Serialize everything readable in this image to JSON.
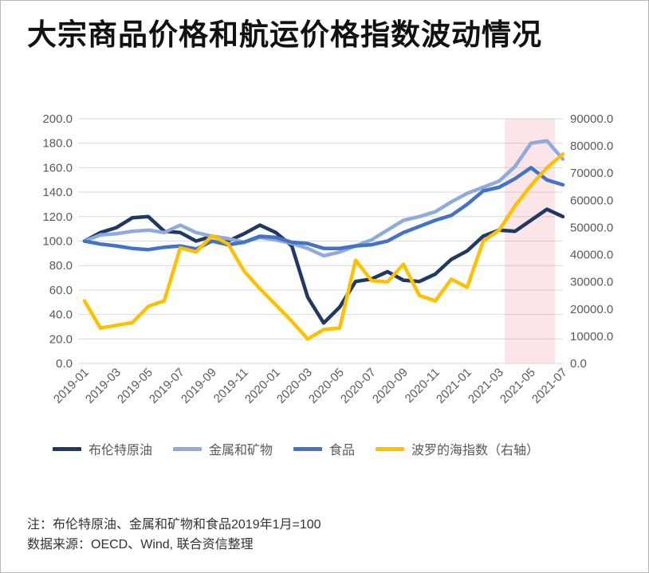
{
  "title": "大宗商品价格和航运价格指数波动情况",
  "notes": {
    "line1": "注：布伦特原油、金属和矿物和食品2019年1月=100",
    "line2": "数据来源：OECD、Wind, 联合资信整理"
  },
  "colors": {
    "gridline": "#D9D9D9",
    "axis_text": "#595959",
    "highlight_band": "#E8707C",
    "highlight_band_opacity": 0.18
  },
  "chart_data": {
    "type": "line",
    "title": "大宗商品价格和航运价格指数波动情况",
    "x": [
      "2019-01",
      "2019-02",
      "2019-03",
      "2019-04",
      "2019-05",
      "2019-06",
      "2019-07",
      "2019-08",
      "2019-09",
      "2019-10",
      "2019-11",
      "2019-12",
      "2020-01",
      "2020-02",
      "2020-03",
      "2020-04",
      "2020-05",
      "2020-06",
      "2020-07",
      "2020-08",
      "2020-09",
      "2020-10",
      "2020-11",
      "2020-12",
      "2021-01",
      "2021-02",
      "2021-03",
      "2021-04",
      "2021-05",
      "2021-06",
      "2021-07"
    ],
    "x_tick_labels": [
      "2019-01",
      "2019-03",
      "2019-05",
      "2019-07",
      "2019-09",
      "2019-11",
      "2020-01",
      "2020-03",
      "2020-05",
      "2020-07",
      "2020-09",
      "2020-11",
      "2021-01",
      "2021-03",
      "2021-05",
      "2021-07"
    ],
    "x_tick_every": 2,
    "left_axis": {
      "min": 0,
      "max": 200,
      "step": 20,
      "decimals": 1
    },
    "right_axis": {
      "min": 0,
      "max": 90000,
      "step": 10000,
      "decimals": 1
    },
    "grid": "horizontal",
    "legend_position": "bottom",
    "highlight_band": {
      "from_index": 26.35,
      "to_index": 29.5,
      "note": "pink shaded region over roughly 2021-04 to 2021-07"
    },
    "series": [
      {
        "name": "布伦特原油",
        "axis": "left",
        "color": "#1F3864",
        "values": [
          100,
          107,
          111,
          119,
          120,
          108,
          107,
          100,
          104,
          100,
          106,
          113,
          107,
          96,
          54,
          33,
          46,
          67,
          69,
          75,
          68,
          67,
          73,
          85,
          92,
          104,
          109,
          108,
          117,
          126,
          120
        ]
      },
      {
        "name": "金属和矿物",
        "axis": "left",
        "color": "#8FAADC",
        "values": [
          100,
          105,
          106,
          108,
          109,
          107,
          113,
          107,
          104,
          102,
          99,
          103,
          101,
          98,
          94,
          88,
          91,
          96,
          101,
          109,
          117,
          120,
          124,
          132,
          139,
          144,
          149,
          161,
          180,
          182,
          167
        ]
      },
      {
        "name": "食品",
        "axis": "left",
        "color": "#4472C4",
        "values": [
          100,
          97.5,
          96,
          94,
          93,
          95,
          96,
          93.5,
          100,
          97,
          99,
          104,
          103,
          99,
          98,
          94,
          94,
          96,
          97,
          100,
          107,
          112,
          117,
          121,
          130,
          141,
          144,
          151,
          160,
          150,
          146
        ]
      },
      {
        "name": "波罗的海指数（右轴）",
        "axis": "right",
        "color": "#FFC000",
        "values": [
          23000,
          13000,
          14000,
          15000,
          21000,
          23000,
          42500,
          41000,
          47000,
          44000,
          34000,
          27500,
          21500,
          15500,
          9000,
          12500,
          13000,
          38000,
          30500,
          30000,
          36500,
          25000,
          23000,
          31000,
          28000,
          45000,
          49000,
          58000,
          65500,
          72000,
          77000
        ]
      }
    ]
  }
}
